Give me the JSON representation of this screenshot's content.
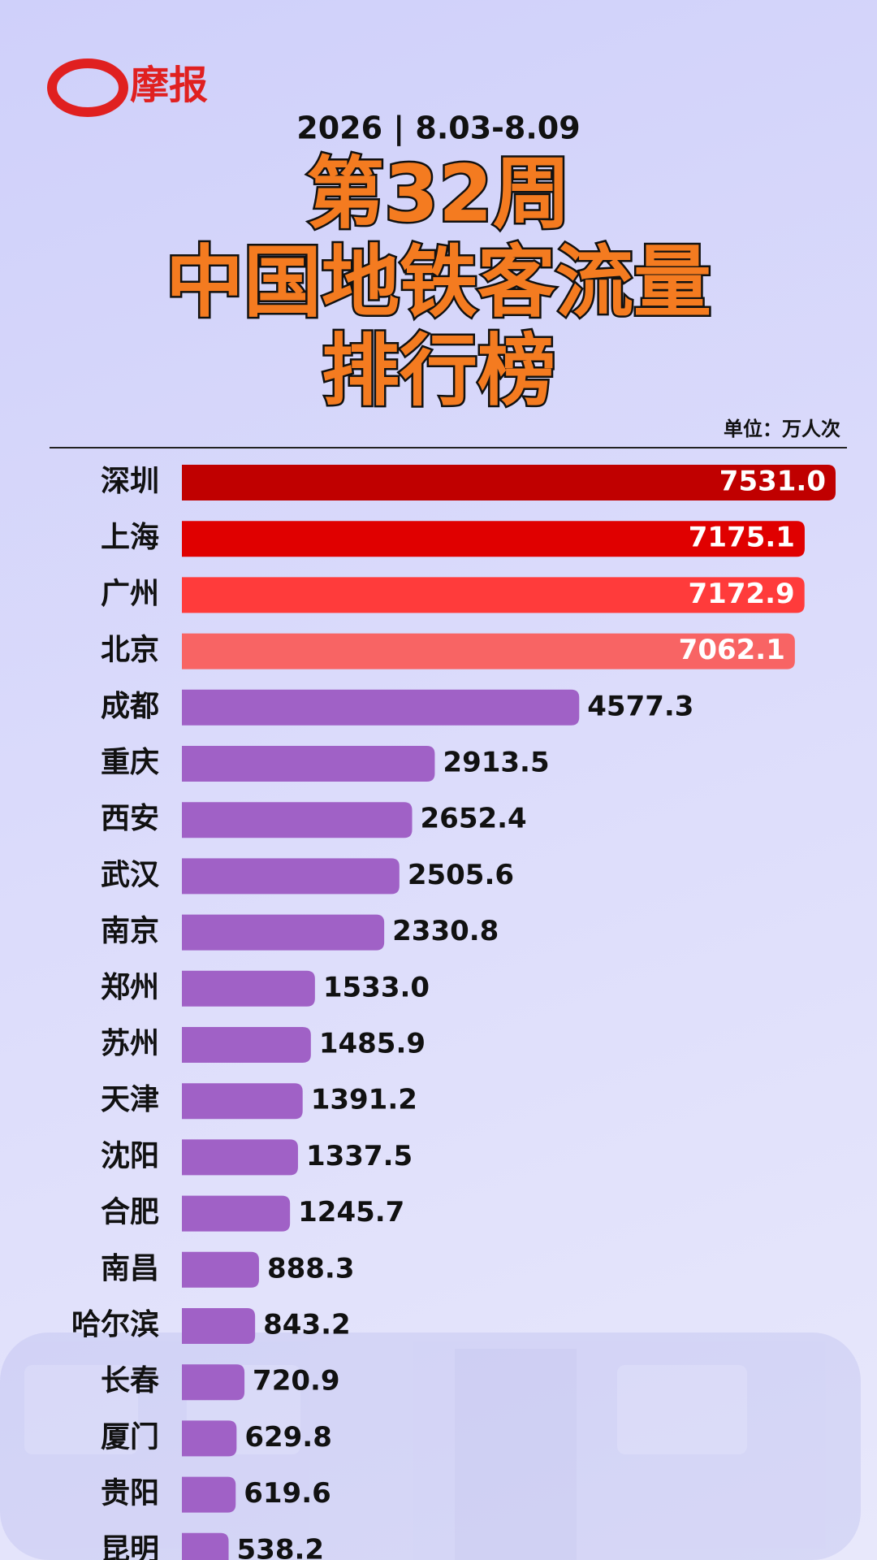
{
  "logo": "摩报",
  "chart_data": {
    "type": "bar",
    "orientation": "horizontal",
    "subtitle": "2026 | 8.03-8.09",
    "title": [
      "第32周",
      "中国地铁客流量",
      "排行榜"
    ],
    "unit_label": "单位：万人次",
    "categories": [
      "深圳",
      "上海",
      "广州",
      "北京",
      "成都",
      "重庆",
      "西安",
      "武汉",
      "南京",
      "郑州",
      "苏州",
      "天津",
      "沈阳",
      "合肥",
      "南昌",
      "哈尔滨",
      "长春",
      "厦门",
      "贵阳",
      "昆明"
    ],
    "values": [
      7531.0,
      7175.1,
      7172.9,
      7062.1,
      4577.3,
      2913.5,
      2652.4,
      2505.6,
      2330.8,
      1533.0,
      1485.9,
      1391.2,
      1337.5,
      1245.7,
      888.3,
      843.2,
      720.9,
      629.8,
      619.6,
      538.2
    ],
    "value_labels": [
      "7531.0",
      "7175.1",
      "7172.9",
      "7062.1",
      "4577.3",
      "2913.5",
      "2652.4",
      "2505.6",
      "2330.8",
      "1533.0",
      "1485.9",
      "1391.2",
      "1337.5",
      "1245.7",
      "888.3",
      "843.2",
      "720.9",
      "629.8",
      "619.6",
      "538.2"
    ],
    "colors": [
      "#c00000",
      "#e00000",
      "#ff3b3b",
      "#f86464",
      "#a061c6",
      "#a061c6",
      "#a061c6",
      "#a061c6",
      "#a061c6",
      "#a061c6",
      "#a061c6",
      "#a061c6",
      "#a061c6",
      "#a061c6",
      "#a061c6",
      "#a061c6",
      "#a061c6",
      "#a061c6",
      "#a061c6",
      "#a061c6"
    ],
    "inside_label_count": 4
  }
}
